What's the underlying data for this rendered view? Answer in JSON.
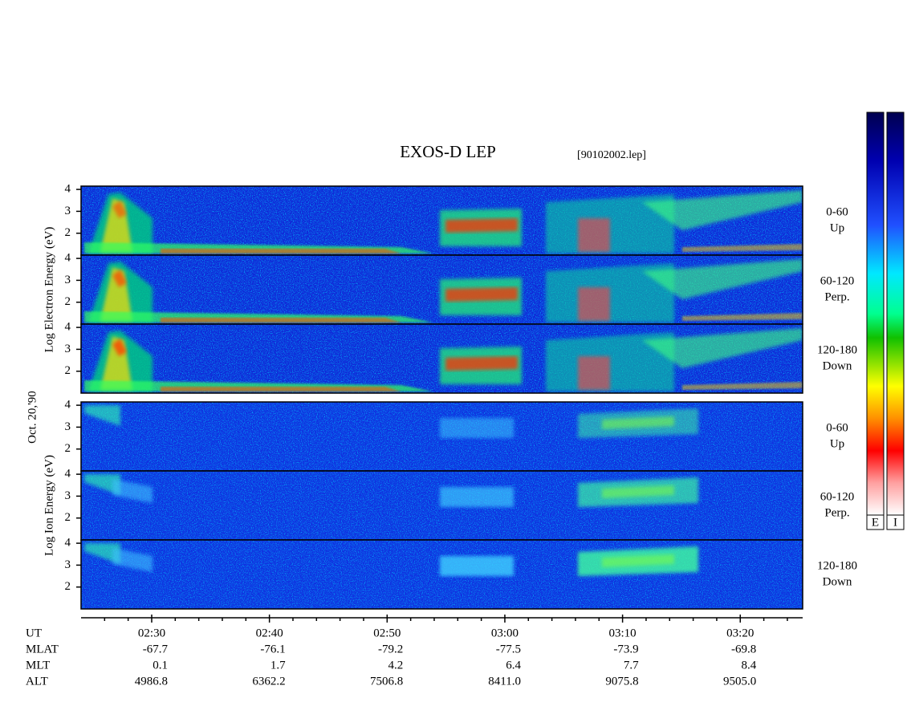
{
  "chart_data": {
    "type": "spectrogram",
    "title": "EXOS-D LEP",
    "file_label": "[90102002.lep]",
    "date_label": "Oct. 20,'90",
    "groups": [
      {
        "ylabel": "Log Electron Energy (eV)",
        "panels": [
          {
            "angle": "0-60",
            "direction": "Up"
          },
          {
            "angle": "60-120",
            "direction": "Perp."
          },
          {
            "angle": "120-180",
            "direction": "Down"
          }
        ]
      },
      {
        "ylabel": "Log Ion Energy (eV)",
        "panels": [
          {
            "angle": "0-60",
            "direction": "Up"
          },
          {
            "angle": "60-120",
            "direction": "Perp."
          },
          {
            "angle": "120-180",
            "direction": "Down"
          }
        ]
      }
    ],
    "ylim": [
      1.0,
      4.15
    ],
    "yticks": [
      2,
      3,
      4
    ],
    "xlim": [
      144,
      205.3
    ],
    "x_row_label": "UT",
    "xticks": [
      {
        "value": 150,
        "label": "02:30"
      },
      {
        "value": 160,
        "label": "02:40"
      },
      {
        "value": 170,
        "label": "02:50"
      },
      {
        "value": 180,
        "label": "03:00"
      },
      {
        "value": 190,
        "label": "03:10"
      },
      {
        "value": 200,
        "label": "03:20"
      }
    ],
    "xminorticks": [
      146,
      148,
      152,
      154,
      156,
      158,
      162,
      164,
      166,
      168,
      172,
      174,
      176,
      178,
      182,
      184,
      186,
      188,
      192,
      194,
      196,
      198,
      202,
      204
    ],
    "orbit_rows": [
      {
        "name": "MLAT",
        "values": [
          -67.7,
          -76.1,
          -79.2,
          -77.5,
          -73.9,
          -69.8
        ]
      },
      {
        "name": "MLT",
        "values": [
          0.1,
          1.7,
          4.2,
          6.4,
          7.7,
          8.4
        ]
      },
      {
        "name": "ALT",
        "values": [
          4986.8,
          6362.2,
          7506.8,
          8411.0,
          9075.8,
          9505.0
        ],
        "value_labels": [
          "4986.8",
          "6362.2",
          "7506.8",
          "8411.0",
          "9075.8",
          "9505.0"
        ]
      }
    ],
    "colorbars": [
      "E",
      "I"
    ]
  }
}
